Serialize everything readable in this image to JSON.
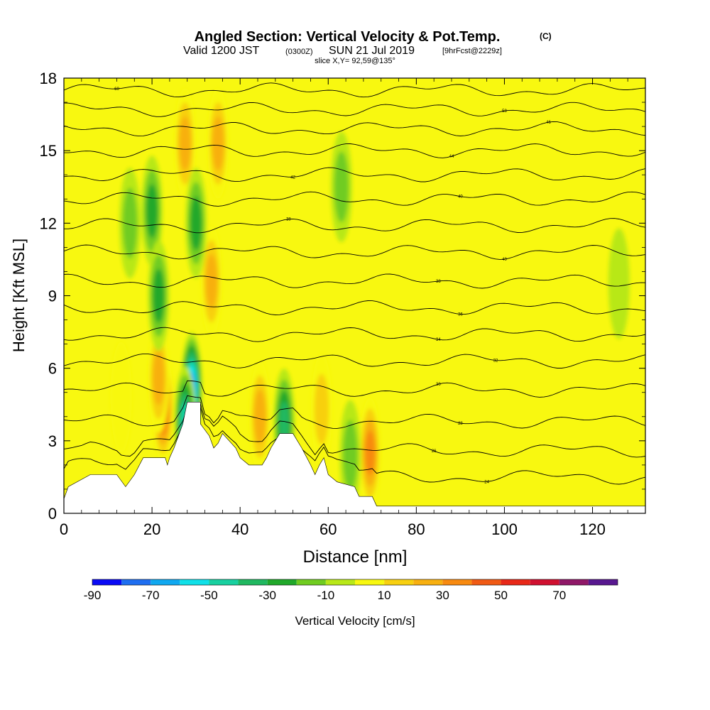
{
  "header": {
    "title": "Angled Section: Vertical Velocity & Pot.Temp.",
    "title_unit": "(C)",
    "valid_prefix": "Valid 1200 JST",
    "valid_z": "(0300Z)",
    "valid_date": "SUN 21 Jul 2019",
    "valid_fcst": "[9hrFcst@2229z]",
    "slice": "slice X,Y= 92,59@135°"
  },
  "chart_data": {
    "type": "heatmap",
    "xlabel": "Distance [nm]",
    "ylabel": "Height [Kft MSL]",
    "xlim": [
      0,
      132
    ],
    "ylim": [
      0,
      18
    ],
    "x_ticks": [
      "0",
      "20",
      "40",
      "60",
      "80",
      "100",
      "120"
    ],
    "x_tick_values": [
      0,
      20,
      40,
      60,
      80,
      100,
      120
    ],
    "y_ticks": [
      "0",
      "3",
      "6",
      "9",
      "12",
      "15",
      "18"
    ],
    "y_tick_values": [
      0,
      3,
      6,
      9,
      12,
      15,
      18
    ],
    "terrain_profile": [
      [
        0,
        0.6
      ],
      [
        1,
        1.1
      ],
      [
        6,
        1.6
      ],
      [
        12,
        1.6
      ],
      [
        14,
        1.1
      ],
      [
        16,
        1.6
      ],
      [
        18,
        2.3
      ],
      [
        23,
        2.3
      ],
      [
        23.5,
        2.0
      ],
      [
        24,
        2.3
      ],
      [
        25,
        2.7
      ],
      [
        26,
        3.2
      ],
      [
        27,
        3.7
      ],
      [
        28,
        4.6
      ],
      [
        31,
        4.6
      ],
      [
        31,
        3.7
      ],
      [
        33,
        3.2
      ],
      [
        34,
        2.7
      ],
      [
        35,
        2.9
      ],
      [
        36,
        3.3
      ],
      [
        38,
        2.9
      ],
      [
        39,
        2.7
      ],
      [
        40,
        2.3
      ],
      [
        42,
        2.0
      ],
      [
        45,
        2.0
      ],
      [
        46,
        2.3
      ],
      [
        47,
        2.7
      ],
      [
        49,
        3.3
      ],
      [
        52,
        3.3
      ],
      [
        54,
        2.7
      ],
      [
        56,
        2.0
      ],
      [
        57,
        1.6
      ],
      [
        58,
        2.0
      ],
      [
        59,
        2.3
      ],
      [
        60,
        1.6
      ],
      [
        62,
        1.3
      ],
      [
        66,
        1.1
      ],
      [
        67,
        0.7
      ],
      [
        70,
        0.7
      ],
      [
        71,
        0.3
      ],
      [
        132,
        0.3
      ]
    ],
    "velocity_features": [
      {
        "x": 22.5,
        "y": 4.4,
        "value": 55
      },
      {
        "x": 21.5,
        "y": 5.6,
        "value": 30
      },
      {
        "x": 27.5,
        "y": 15.3,
        "value": 35
      },
      {
        "x": 33.5,
        "y": 9.6,
        "value": 35
      },
      {
        "x": 35,
        "y": 15.3,
        "value": 30
      },
      {
        "x": 44.5,
        "y": 4.0,
        "value": 30
      },
      {
        "x": 58.5,
        "y": 4.3,
        "value": 25
      },
      {
        "x": 69.5,
        "y": 2.5,
        "value": 40
      },
      {
        "x": 13,
        "y": 4.8,
        "value": 15
      },
      {
        "x": 20,
        "y": 12.5,
        "value": -30
      },
      {
        "x": 21.5,
        "y": 9.0,
        "value": -35
      },
      {
        "x": 30,
        "y": 12.0,
        "value": -35
      },
      {
        "x": 29,
        "y": 5.2,
        "value": -70
      },
      {
        "x": 27.5,
        "y": 3.8,
        "value": -55
      },
      {
        "x": 50,
        "y": 3.7,
        "value": -40
      },
      {
        "x": 63,
        "y": 13.5,
        "value": -20
      },
      {
        "x": 65,
        "y": 2.4,
        "value": -25
      },
      {
        "x": 15,
        "y": 12.0,
        "value": -20
      },
      {
        "x": 126,
        "y": 9.5,
        "value": -15
      }
    ],
    "theta_contours": [
      {
        "label": "60",
        "base": 17.5,
        "label_x": 12
      },
      {
        "label": "58",
        "base": 16.7,
        "label_x": 100
      },
      {
        "label": "46",
        "base": 15.9,
        "label_x": 110
      },
      {
        "label": "44",
        "base": 15.0,
        "label_x": 88
      },
      {
        "label": "42",
        "base": 14.0,
        "label_x": 52
      },
      {
        "label": "40",
        "base": 13.0,
        "label_x": 90
      },
      {
        "label": "38",
        "base": 11.9,
        "label_x": 51
      },
      {
        "label": "40",
        "base": 10.8,
        "label_x": 100
      },
      {
        "label": "38",
        "base": 9.6,
        "label_x": 85
      },
      {
        "label": "36",
        "base": 8.5,
        "label_x": 90
      },
      {
        "label": "34",
        "base": 7.4,
        "label_x": 85
      },
      {
        "label": "32",
        "base": 6.3,
        "label_x": 98
      },
      {
        "label": "30",
        "base": 5.1,
        "label_x": 85
      },
      {
        "label": "28",
        "base": 3.8,
        "label_x": 90
      },
      {
        "label": "26",
        "base": 2.6,
        "label_x": 84
      },
      {
        "label": "24",
        "base": 1.5,
        "label_x": 96
      }
    ],
    "colorbar": {
      "label": "Vertical Velocity [cm/s]",
      "tick_labels": [
        "-90",
        "-70",
        "-50",
        "-30",
        "-10",
        "10",
        "30",
        "50",
        "70"
      ],
      "bins": [
        {
          "lo": -90,
          "hi": -80,
          "color": "#0a0af5"
        },
        {
          "lo": -80,
          "hi": -70,
          "color": "#1e6ef0"
        },
        {
          "lo": -70,
          "hi": -60,
          "color": "#10a8f0"
        },
        {
          "lo": -60,
          "hi": -50,
          "color": "#10e0e8"
        },
        {
          "lo": -50,
          "hi": -40,
          "color": "#18d0a0"
        },
        {
          "lo": -40,
          "hi": -30,
          "color": "#20b860"
        },
        {
          "lo": -30,
          "hi": -20,
          "color": "#20a82a"
        },
        {
          "lo": -20,
          "hi": -10,
          "color": "#70cc20"
        },
        {
          "lo": -10,
          "hi": 0,
          "color": "#b8e818"
        },
        {
          "lo": 0,
          "hi": 10,
          "color": "#f8f810"
        },
        {
          "lo": 10,
          "hi": 20,
          "color": "#f8d010"
        },
        {
          "lo": 20,
          "hi": 30,
          "color": "#f8b010"
        },
        {
          "lo": 30,
          "hi": 40,
          "color": "#f88a10"
        },
        {
          "lo": 40,
          "hi": 50,
          "color": "#f05a14"
        },
        {
          "lo": 50,
          "hi": 60,
          "color": "#e82818"
        },
        {
          "lo": 60,
          "hi": 70,
          "color": "#d01030"
        },
        {
          "lo": 70,
          "hi": 80,
          "color": "#901868"
        },
        {
          "lo": 80,
          "hi": 90,
          "color": "#581890"
        }
      ]
    }
  }
}
